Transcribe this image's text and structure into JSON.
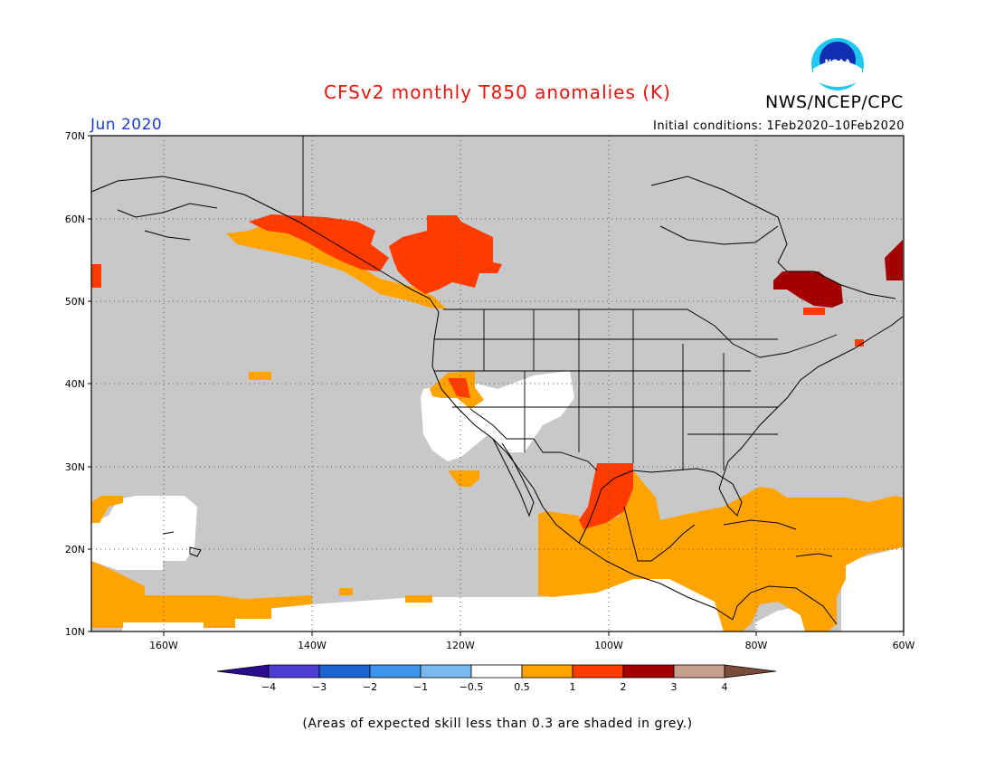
{
  "title": "CFSv2 monthly T850 anomalies (K)",
  "agency": "NWS/NCEP/CPC",
  "logo_text": "NOAA",
  "month": "Jun 2020",
  "initial_conditions": "Initial conditions: 1Feb2020–10Feb2020",
  "footnote": "(Areas of expected skill less than 0.3 are shaded in grey.)",
  "map": {
    "lon_range": [
      -170,
      -60
    ],
    "lat_range": [
      10,
      70
    ],
    "lat_ticks": [
      "70N",
      "60N",
      "50N",
      "40N",
      "30N",
      "20N",
      "10N"
    ],
    "lon_ticks": [
      "160W",
      "140W",
      "120W",
      "100W",
      "80W",
      "60W"
    ],
    "no_skill_color": "#c8c8c8"
  },
  "colorbar": {
    "labels": [
      "−4",
      "−3",
      "−2",
      "−1",
      "−0.5",
      "0.5",
      "1",
      "2",
      "3",
      "4"
    ],
    "colors": [
      "#2a0d8e",
      "#4a3fd0",
      "#1d63cf",
      "#3c95e8",
      "#7ab9f0",
      "#ffffff",
      "#ffa300",
      "#ff3b00",
      "#a50000",
      "#c89e8c",
      "#7a4a3a"
    ]
  }
}
